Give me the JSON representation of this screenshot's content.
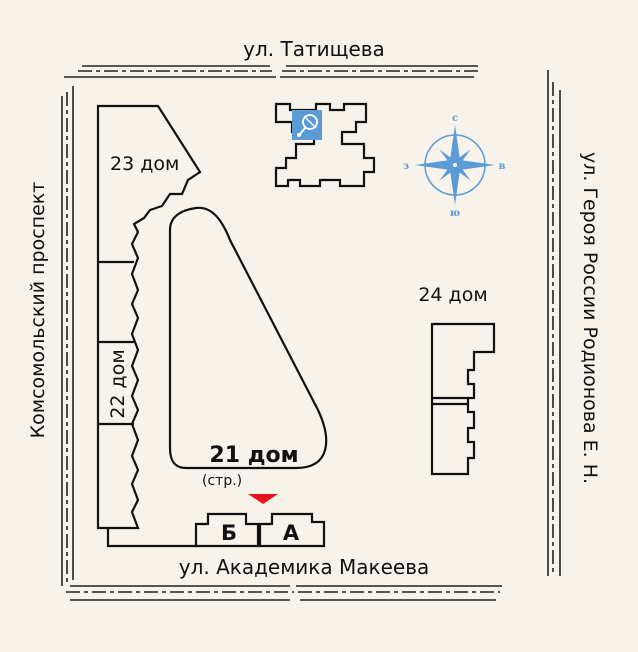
{
  "streets": {
    "top": "ул. Татищева",
    "bottom": "ул. Академика Макеева",
    "left": "Комсомольский проспект",
    "right": "ул. Героя России Родионова Е. Н."
  },
  "buildings": {
    "b23": "23 дом",
    "b22": "22 дом",
    "b21": "21 дом",
    "b21_note": "(стр.)",
    "b24": "24 дом",
    "sectionB": "Б",
    "sectionA": "А"
  },
  "compass": {
    "north": "с",
    "south": "ю",
    "west": "з",
    "east": "в"
  },
  "colors": {
    "background": "#f7f3ea",
    "accent_blue": "#5b9bd6",
    "marker_red": "#e8141b",
    "line": "#111111"
  },
  "icons": {
    "poi": "satellite-icon",
    "marker": "location-triangle-icon",
    "compass": "compass-rose-icon"
  }
}
